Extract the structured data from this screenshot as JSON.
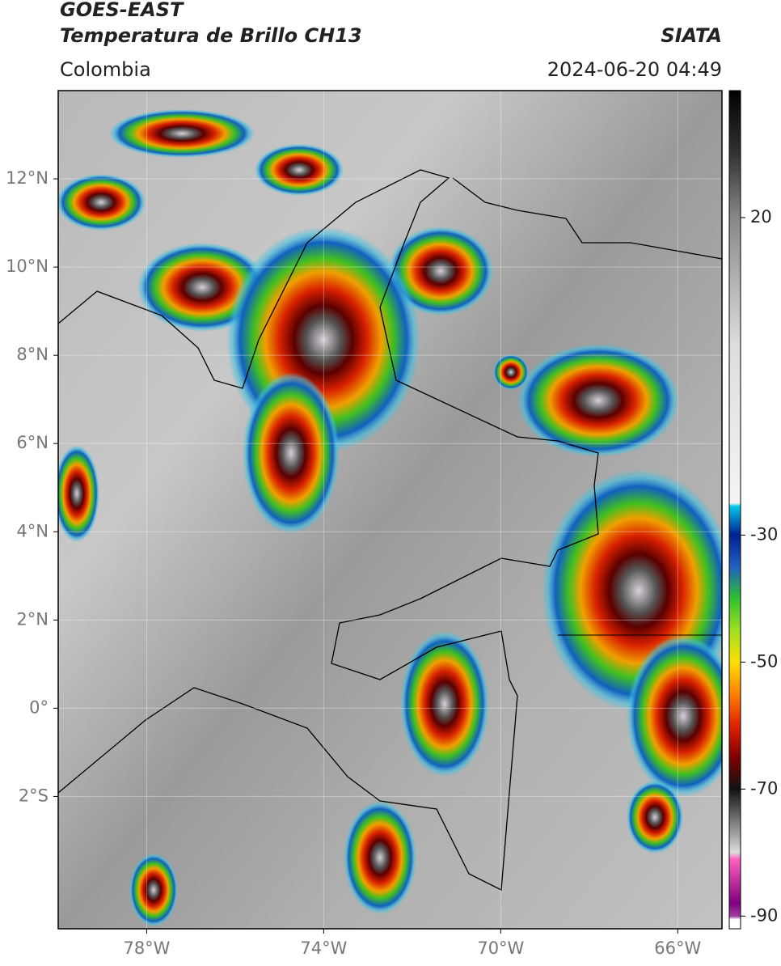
{
  "header": {
    "title": "GOES-EAST",
    "subtitle": "Temperatura de Brillo CH13",
    "source": "SIATA",
    "region": "Colombia",
    "timestamp": "2024-06-20 04:49"
  },
  "map": {
    "xlim": [
      -80,
      -65
    ],
    "ylim": [
      -5,
      14
    ],
    "xticks": [
      {
        "value": -78,
        "label": "78°W"
      },
      {
        "value": -74,
        "label": "74°W"
      },
      {
        "value": -70,
        "label": "70°W"
      },
      {
        "value": -66,
        "label": "66°W"
      }
    ],
    "yticks": [
      {
        "value": 12,
        "label": "12°N"
      },
      {
        "value": 10,
        "label": "10°N"
      },
      {
        "value": 8,
        "label": "8°N"
      },
      {
        "value": 6,
        "label": "6°N"
      },
      {
        "value": 4,
        "label": "4°N"
      },
      {
        "value": 2,
        "label": "2°N"
      },
      {
        "value": 0,
        "label": "0°"
      },
      {
        "value": -2,
        "label": "2°S"
      }
    ],
    "grid": true,
    "colorbar": {
      "lim": [
        -92,
        40
      ],
      "ticks": [
        20,
        -30,
        -50,
        -70,
        -90
      ]
    }
  }
}
